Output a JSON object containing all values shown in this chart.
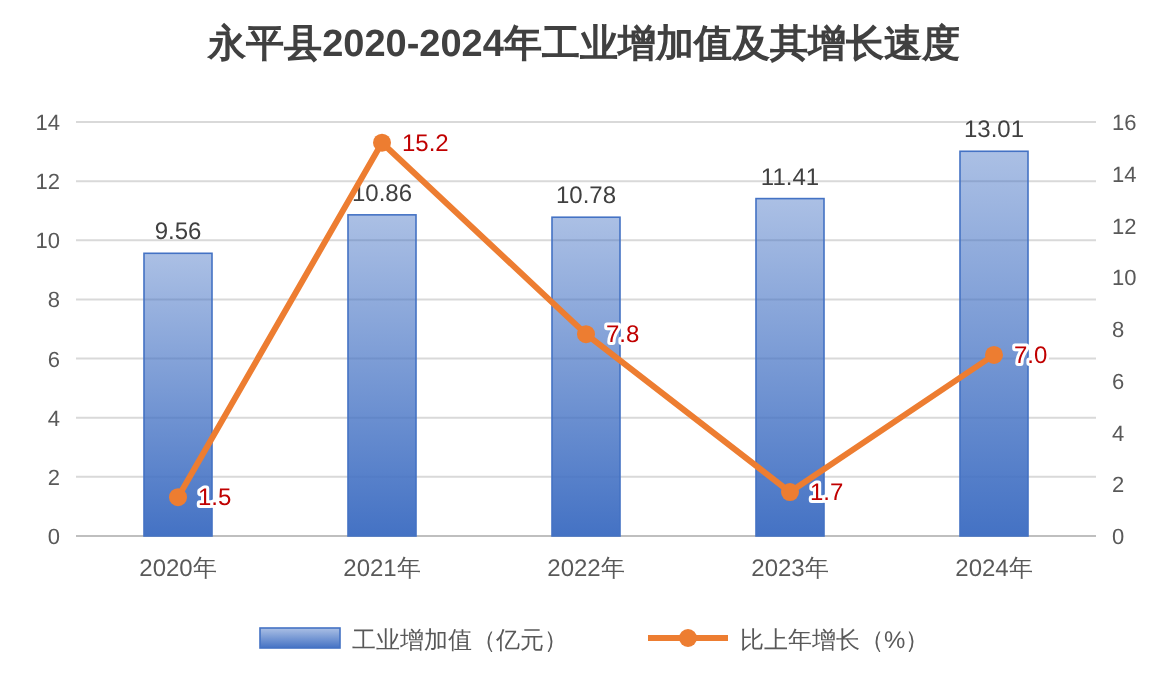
{
  "chart_data": {
    "type": "bar",
    "title": "永平县2020-2024年工业增加值及其增长速度",
    "categories": [
      "2020年",
      "2021年",
      "2022年",
      "2023年",
      "2024年"
    ],
    "series": [
      {
        "name": "工业增加值（亿元）",
        "color": "#4472c4",
        "values": [
          9.56,
          10.86,
          10.78,
          11.41,
          13.01
        ],
        "value_labels": [
          "9.56",
          "10.86",
          "10.78",
          "11.41",
          "13.01"
        ]
      },
      {
        "name": "比上年增长（%）",
        "type": "line",
        "axis": "y2",
        "color": "#ed7d31",
        "marker": "circle",
        "values": [
          1.5,
          15.2,
          7.8,
          1.7,
          7.0
        ],
        "value_labels": [
          "1.5",
          "15.2",
          "7.8",
          "1.7",
          "7.0"
        ]
      }
    ],
    "ylim": [
      0,
      14
    ],
    "yticks": [
      0,
      2,
      4,
      6,
      8,
      10,
      12,
      14
    ],
    "y2lim": [
      0,
      16
    ],
    "y2ticks": [
      0,
      2,
      4,
      6,
      8,
      10,
      12,
      14,
      16
    ],
    "grid": "y",
    "legend": "bottom"
  }
}
